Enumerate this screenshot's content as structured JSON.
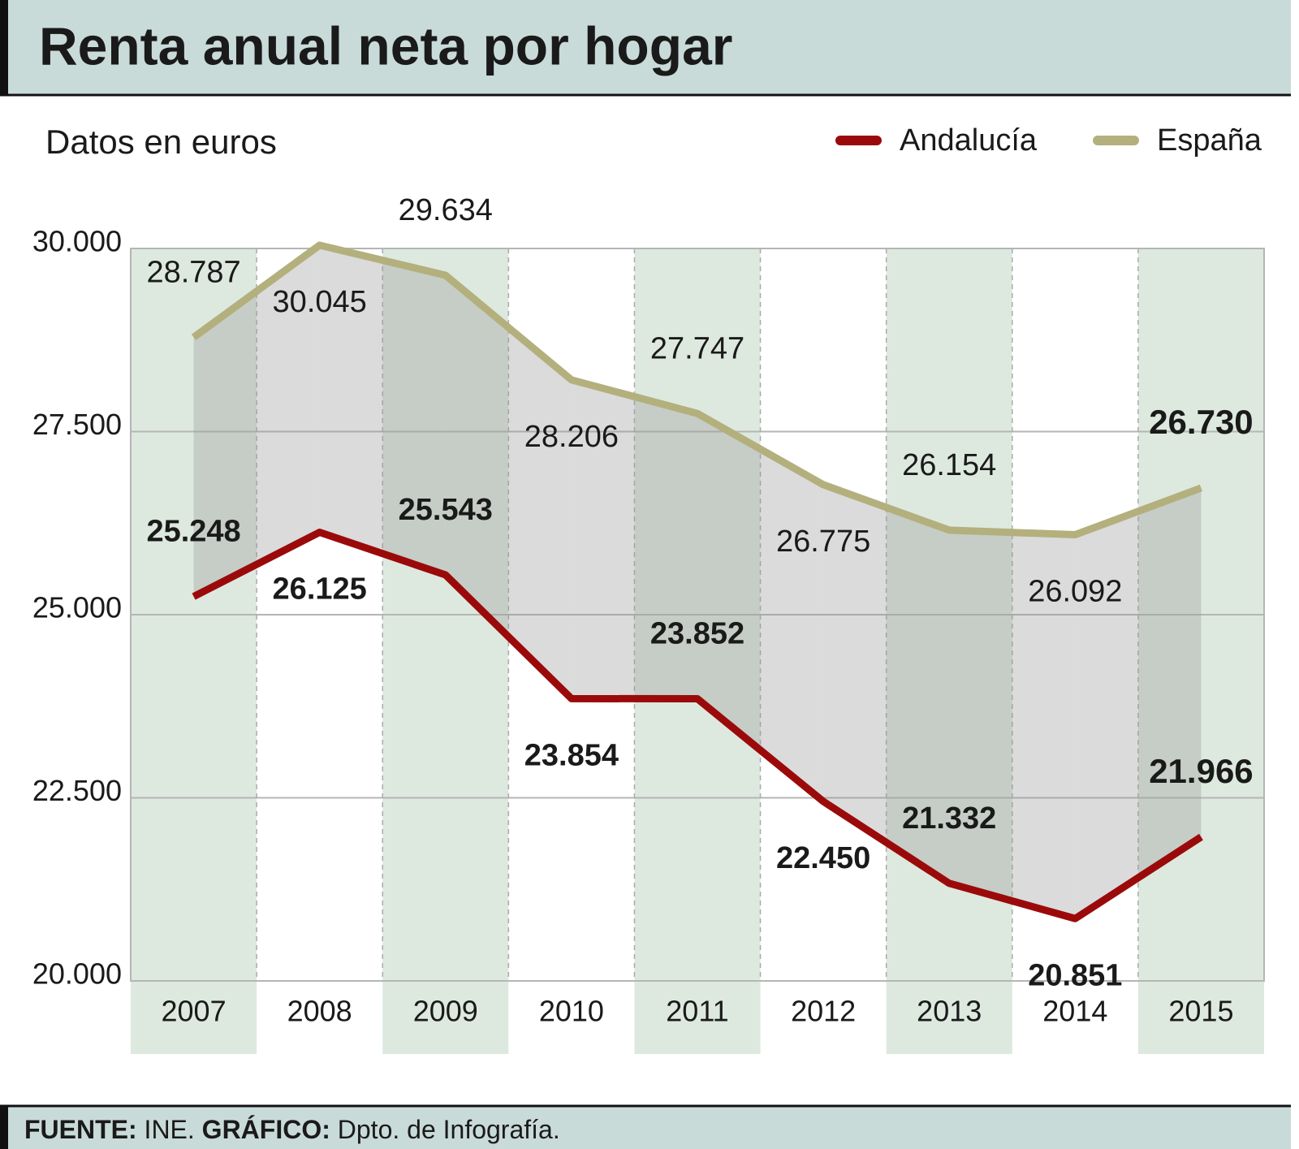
{
  "chart_data": {
    "type": "line",
    "title": "Renta anual neta por hogar",
    "subtitle": "Datos en euros",
    "categories": [
      "2007",
      "2008",
      "2009",
      "2010",
      "2011",
      "2012",
      "2013",
      "2014",
      "2015"
    ],
    "series": [
      {
        "name": "Andalucía",
        "color": "#9b0a0a",
        "values": [
          25248,
          26125,
          25543,
          23854,
          23852,
          22450,
          21332,
          20851,
          21966
        ],
        "value_labels": [
          "25.248",
          "26.125",
          "25.543",
          "23.854",
          "23.852",
          "22.450",
          "21.332",
          "20.851",
          "21.966"
        ]
      },
      {
        "name": "España",
        "color": "#b3b07e",
        "values": [
          28787,
          30045,
          29634,
          28206,
          27747,
          26775,
          26154,
          26092,
          26730
        ],
        "value_labels": [
          "28.787",
          "30.045",
          "29.634",
          "28.206",
          "27.747",
          "26.775",
          "26.154",
          "26.092",
          "26.730"
        ]
      }
    ],
    "ylim": [
      20000,
      30000
    ],
    "yticks": [
      {
        "value": 20000,
        "label": "20.000"
      },
      {
        "value": 22500,
        "label": "22.500"
      },
      {
        "value": 25000,
        "label": "25.000"
      },
      {
        "value": 27500,
        "label": "27.500"
      },
      {
        "value": 30000,
        "label": "30.000"
      }
    ],
    "grid": true,
    "legend": "top-right",
    "source_label": "FUENTE:",
    "source": "INE.",
    "credit_label": "GRÁFICO:",
    "credit": "Dpto. de Infografía."
  }
}
